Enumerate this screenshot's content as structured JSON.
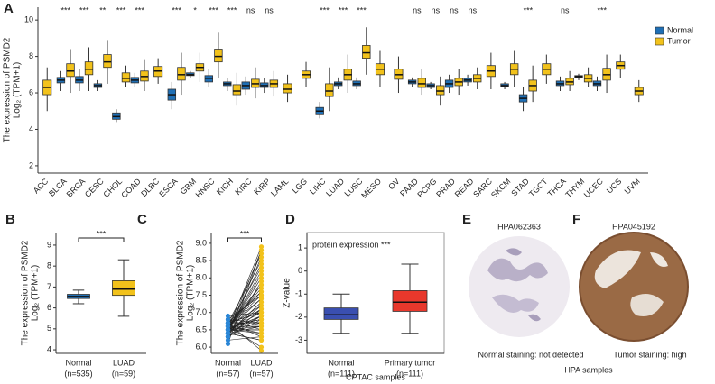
{
  "chart_data": [
    {
      "type": "box",
      "panel_label": "A",
      "ylabel": [
        "The expression of PSMD2",
        "Log₂ (TPM+1)"
      ],
      "categories": [
        "ACC",
        "BLCA",
        "BRCA",
        "CESC",
        "CHOL",
        "COAD",
        "DLBC",
        "ESCA",
        "GBM",
        "HNSC",
        "KICH",
        "KIRC",
        "KIRP",
        "LAML",
        "LGG",
        "LIHC",
        "LUAD",
        "LUSC",
        "MESO",
        "OV",
        "PAAD",
        "PCPG",
        "PRAD",
        "READ",
        "SARC",
        "SKCM",
        "STAD",
        "TGCT",
        "THCA",
        "THYM",
        "UCEC",
        "UCS",
        "UVM"
      ],
      "significance": [
        null,
        "***",
        "***",
        "**",
        "***",
        "***",
        null,
        "***",
        "*",
        "***",
        "***",
        "ns",
        "ns",
        null,
        null,
        "***",
        "***",
        "***",
        null,
        null,
        "ns",
        "ns",
        "ns",
        "ns",
        null,
        null,
        "***",
        null,
        "ns",
        null,
        "***",
        null,
        null
      ],
      "series": [
        {
          "name": "Normal",
          "color": "#1f6fb5",
          "values": [
            null,
            [
              6.1,
              6.55,
              6.7,
              6.85,
              7.2
            ],
            [
              6.1,
              6.55,
              6.7,
              6.9,
              7.3
            ],
            [
              6.1,
              6.3,
              6.4,
              6.5,
              6.7
            ],
            [
              4.4,
              4.55,
              4.7,
              4.9,
              5.1
            ],
            [
              6.3,
              6.55,
              6.7,
              6.85,
              7.1
            ],
            null,
            [
              5.1,
              5.6,
              5.9,
              6.2,
              6.6
            ],
            [
              6.8,
              6.95,
              7.0,
              7.1,
              7.2
            ],
            [
              6.3,
              6.6,
              6.8,
              6.95,
              7.3
            ],
            [
              6.1,
              6.4,
              6.5,
              6.6,
              6.8
            ],
            [
              5.9,
              6.2,
              6.4,
              6.6,
              6.9
            ],
            [
              6.0,
              6.3,
              6.4,
              6.55,
              6.8
            ],
            null,
            null,
            [
              4.6,
              4.8,
              5.0,
              5.2,
              5.5
            ],
            [
              6.2,
              6.4,
              6.5,
              6.6,
              6.85
            ],
            [
              6.2,
              6.4,
              6.5,
              6.65,
              6.85
            ],
            null,
            null,
            [
              6.3,
              6.5,
              6.6,
              6.7,
              6.85
            ],
            [
              6.2,
              6.3,
              6.4,
              6.5,
              6.6
            ],
            [
              6.0,
              6.3,
              6.5,
              6.7,
              7.0
            ],
            [
              6.4,
              6.6,
              6.7,
              6.8,
              7.0
            ],
            null,
            [
              6.2,
              6.35,
              6.4,
              6.5,
              6.6
            ],
            [
              5.0,
              5.5,
              5.7,
              5.9,
              6.3
            ],
            null,
            [
              6.1,
              6.4,
              6.5,
              6.65,
              6.9
            ],
            [
              6.7,
              6.85,
              6.9,
              6.95,
              7.05
            ],
            [
              6.1,
              6.4,
              6.5,
              6.65,
              6.9
            ],
            null,
            null
          ]
        },
        {
          "name": "Tumor",
          "color": "#f2c21b",
          "values": [
            [
              5.0,
              5.9,
              6.3,
              6.7,
              7.4
            ],
            [
              6.0,
              6.9,
              7.2,
              7.6,
              8.4
            ],
            [
              6.1,
              7.0,
              7.3,
              7.7,
              8.5
            ],
            [
              6.5,
              7.4,
              7.7,
              8.1,
              8.9
            ],
            [
              6.3,
              6.6,
              6.8,
              7.1,
              7.5
            ],
            [
              6.1,
              6.65,
              6.9,
              7.2,
              7.8
            ],
            [
              6.5,
              6.9,
              7.2,
              7.45,
              7.9
            ],
            [
              5.9,
              6.7,
              7.0,
              7.4,
              8.2
            ],
            [
              6.6,
              7.2,
              7.4,
              7.6,
              8.2
            ],
            [
              6.8,
              7.7,
              8.0,
              8.4,
              9.3
            ],
            [
              5.3,
              5.9,
              6.1,
              6.45,
              7.1
            ],
            [
              5.7,
              6.3,
              6.5,
              6.75,
              7.4
            ],
            [
              5.8,
              6.3,
              6.5,
              6.7,
              7.2
            ],
            [
              5.5,
              6.0,
              6.2,
              6.5,
              7.0
            ],
            [
              6.3,
              6.8,
              7.0,
              7.2,
              7.7
            ],
            [
              5.0,
              5.8,
              6.1,
              6.5,
              7.4
            ],
            [
              6.0,
              6.7,
              7.0,
              7.3,
              8.1
            ],
            [
              7.0,
              7.9,
              8.2,
              8.6,
              9.6
            ],
            [
              6.3,
              7.0,
              7.3,
              7.6,
              8.3
            ],
            [
              6.0,
              6.75,
              7.0,
              7.3,
              8.0
            ],
            [
              5.9,
              6.3,
              6.5,
              6.8,
              7.3
            ],
            [
              5.3,
              5.9,
              6.1,
              6.4,
              6.9
            ],
            [
              5.9,
              6.4,
              6.6,
              6.8,
              7.3
            ],
            [
              6.2,
              6.6,
              6.8,
              7.0,
              7.4
            ],
            [
              6.2,
              6.9,
              7.2,
              7.5,
              8.2
            ],
            [
              6.3,
              7.0,
              7.3,
              7.6,
              8.3
            ],
            [
              5.5,
              6.1,
              6.4,
              6.7,
              7.5
            ],
            [
              6.5,
              7.0,
              7.3,
              7.6,
              8.1
            ],
            [
              6.1,
              6.45,
              6.6,
              6.8,
              7.2
            ],
            [
              6.3,
              6.6,
              6.8,
              7.0,
              7.4
            ],
            [
              6.0,
              6.7,
              7.0,
              7.35,
              8.1
            ],
            [
              6.8,
              7.3,
              7.5,
              7.7,
              8.1
            ],
            [
              5.5,
              5.9,
              6.1,
              6.3,
              6.7
            ]
          ]
        }
      ],
      "ylim": [
        1.6,
        10.7
      ],
      "yticks": [
        2,
        4,
        6,
        8,
        10
      ],
      "legend": "top-right"
    },
    {
      "type": "box",
      "panel_label": "B",
      "ylabel": [
        "The expression of PSMD2",
        "Log₂ (TPM+1)"
      ],
      "categories": [
        "Normal",
        "LUAD"
      ],
      "category_notes": [
        "(n=535)",
        "(n=59)"
      ],
      "values": [
        [
          6.2,
          6.45,
          6.55,
          6.65,
          6.85
        ],
        [
          5.6,
          6.6,
          6.9,
          7.3,
          8.3
        ]
      ],
      "colors": [
        "#1f6fb5",
        "#f2c21b"
      ],
      "annotation": "***",
      "ylim": [
        3.83,
        9.6
      ],
      "yticks": [
        4,
        5,
        6,
        7,
        8,
        9
      ]
    },
    {
      "type": "paired",
      "panel_label": "C",
      "ylabel": [
        "The expression of PSMD2",
        "Log₂ (TPM+1)"
      ],
      "categories": [
        "Normal",
        "LUAD"
      ],
      "category_notes": [
        "(n=57)",
        "(n=57)"
      ],
      "values": [
        [
          6.5,
          6.6,
          6.4,
          6.7,
          6.5,
          6.3,
          6.6,
          6.8,
          6.5,
          6.4,
          6.6,
          6.5,
          6.7,
          6.9,
          6.4,
          6.5,
          6.6,
          6.3,
          6.5,
          6.7,
          6.6,
          6.4,
          6.5,
          6.8,
          6.6,
          6.5,
          6.2,
          6.4,
          6.6,
          6.7,
          6.5,
          6.5,
          6.6,
          6.4,
          6.3,
          6.7,
          6.5,
          6.6,
          6.8,
          6.5,
          6.4,
          6.6,
          6.5,
          6.7,
          6.6,
          6.4,
          6.5,
          6.3,
          6.6,
          6.5,
          6.7,
          6.4,
          6.6,
          6.5,
          6.1,
          6.6,
          6.5
        ],
        [
          8.9,
          8.7,
          8.8,
          8.5,
          8.2,
          7.9,
          7.7,
          7.5,
          7.4,
          7.3,
          7.2,
          7.1,
          7.0,
          7.0,
          6.9,
          6.9,
          6.8,
          6.8,
          6.7,
          6.7,
          6.6,
          6.6,
          6.5,
          6.5,
          6.4,
          6.4,
          6.3,
          6.2,
          6.0,
          5.9,
          8.0,
          7.8,
          7.6,
          7.3,
          7.1,
          7.0,
          6.9,
          6.8,
          6.7,
          6.6,
          8.6,
          8.3,
          8.1,
          7.6,
          7.4,
          7.2,
          7.0,
          6.9,
          6.8,
          6.5,
          6.3,
          6.2,
          7.8,
          8.4,
          8.8,
          7.5,
          7.1
        ]
      ],
      "colors": [
        "#2a86d6",
        "#f2c21b"
      ],
      "annotation": "***",
      "ylim": [
        5.82,
        9.31
      ],
      "yticks": [
        {
          "value": 6.0,
          "label": "6.0"
        },
        {
          "value": 6.5,
          "label": "6.5"
        },
        {
          "value": 7.0,
          "label": "7.0"
        },
        {
          "value": 7.5,
          "label": "7.5"
        },
        {
          "value": 8.0,
          "label": "8.0"
        },
        {
          "value": 8.5,
          "label": "8.5"
        },
        {
          "value": 9.0,
          "label": "9.0"
        }
      ]
    },
    {
      "type": "box",
      "panel_label": "D",
      "ylabel": [
        "Z-value"
      ],
      "xlabel": "CPTAC samples",
      "categories": [
        "Normal",
        "Primary tumor"
      ],
      "category_notes": [
        "(n=111)",
        "(n=111)"
      ],
      "values": [
        [
          -2.7,
          -2.1,
          -1.9,
          -1.6,
          -1.0
        ],
        [
          -2.7,
          -1.75,
          -1.35,
          -0.85,
          0.3
        ]
      ],
      "colors": [
        "#3a4fb0",
        "#e8382c"
      ],
      "annotation": "protein expression ***",
      "ylim": [
        -3.57,
        1.67
      ],
      "yticks": [
        1,
        0,
        -1,
        -2,
        -3
      ]
    }
  ],
  "images": [
    {
      "panel_label": "E",
      "id": "HPA062363",
      "caption": "Normal staining: not detected"
    },
    {
      "panel_label": "F",
      "id": "HPA045192",
      "caption": "Tumor staining: high"
    }
  ],
  "images_caption": "HPA samples"
}
